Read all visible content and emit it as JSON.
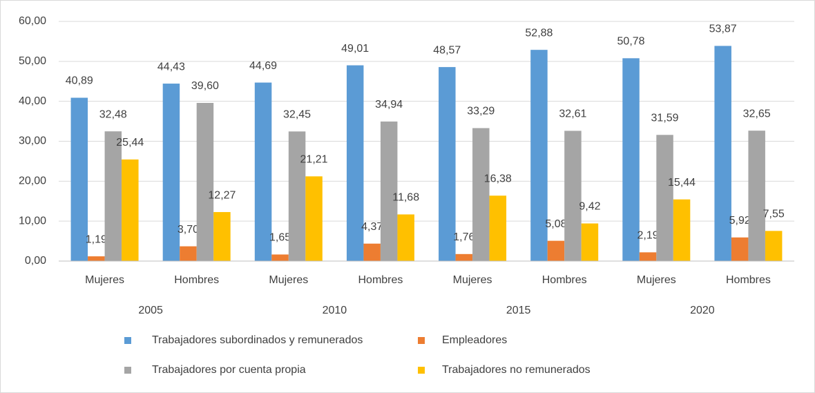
{
  "chart_data": {
    "type": "bar",
    "categories": [
      "Mujeres",
      "Hombres",
      "Mujeres",
      "Hombres",
      "Mujeres",
      "Hombres",
      "Mujeres",
      "Hombres"
    ],
    "group_labels": [
      "2005",
      "2010",
      "2015",
      "2020"
    ],
    "series": [
      {
        "name": "Trabajadores subordinados y remunerados",
        "color": "#5b9bd5",
        "values": [
          40.89,
          44.43,
          44.69,
          49.01,
          48.57,
          52.88,
          50.78,
          53.87
        ],
        "value_labels": [
          "40,89",
          "44,43",
          "44,69",
          "49,01",
          "48,57",
          "52,88",
          "50,78",
          "53,87"
        ]
      },
      {
        "name": "Empleadores",
        "color": "#ed7d31",
        "values": [
          1.19,
          3.7,
          1.65,
          4.37,
          1.76,
          5.08,
          2.19,
          5.92
        ],
        "value_labels": [
          "1,19",
          "3,70",
          "1,65",
          "4,37",
          "1,76",
          "5,08",
          "2,19",
          "5,92"
        ]
      },
      {
        "name": "Trabajadores por cuenta propia",
        "color": "#a5a5a5",
        "values": [
          32.48,
          39.6,
          32.45,
          34.94,
          33.29,
          32.61,
          31.59,
          32.65
        ],
        "value_labels": [
          "32,48",
          "39,60",
          "32,45",
          "34,94",
          "33,29",
          "32,61",
          "31,59",
          "32,65"
        ]
      },
      {
        "name": "Trabajadores no remunerados",
        "color": "#ffc000",
        "values": [
          25.44,
          12.27,
          21.21,
          11.68,
          16.38,
          9.42,
          15.44,
          7.55
        ],
        "value_labels": [
          "25,44",
          "12,27",
          "21,21",
          "11,68",
          "16,38",
          "9,42",
          "15,44",
          "7,55"
        ]
      }
    ],
    "ylim": [
      0,
      60
    ],
    "yticks": [
      {
        "value": 0,
        "label": "0,00"
      },
      {
        "value": 10,
        "label": "10,00"
      },
      {
        "value": 20,
        "label": "20,00"
      },
      {
        "value": 30,
        "label": "30,00"
      },
      {
        "value": 40,
        "label": "40,00"
      },
      {
        "value": 50,
        "label": "50,00"
      },
      {
        "value": 60,
        "label": "60,00"
      }
    ],
    "grid": true,
    "legend": "bottom"
  }
}
